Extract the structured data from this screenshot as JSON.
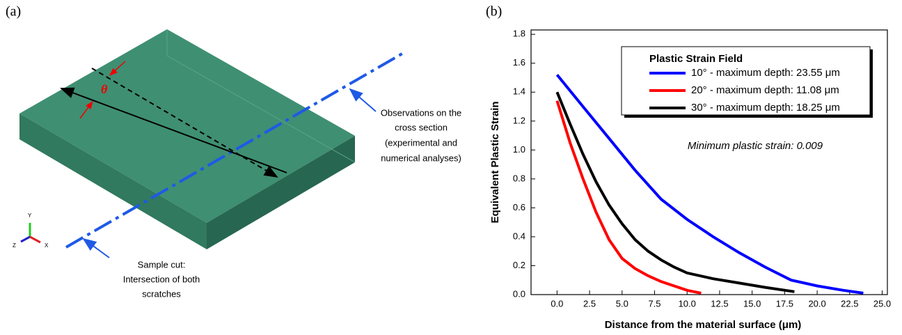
{
  "diagram": {
    "panel_label": "(a)",
    "angle_label": "θ",
    "observation_note": [
      "Observations on the",
      "cross section",
      "(experimental and",
      "numerical analyses)"
    ],
    "cut_note": [
      "Sample cut:",
      "Intersection of both",
      "scratches"
    ],
    "axes": {
      "y": "Y",
      "z": "Z",
      "x": "X"
    }
  },
  "chart_data": {
    "type": "line",
    "panel_label": "(b)",
    "xlabel": "Distance from the material surface (μm)",
    "ylabel": "Equivalent Plastic Strain",
    "annotation": "Minimum plastic strain: 0.009",
    "legend_title": "Plastic Strain Field",
    "legend": "upper right",
    "xlim": [
      -2,
      25.4
    ],
    "ylim": [
      0,
      1.83
    ],
    "xticks": [
      {
        "value": 0,
        "label": "0.0"
      },
      2.5,
      {
        "value": 5,
        "label": "5.0"
      },
      7.5,
      {
        "value": 10,
        "label": "10.0"
      },
      12.5,
      {
        "value": 15,
        "label": "15.0"
      },
      17.5,
      {
        "value": 20,
        "label": "20.0"
      },
      22.5,
      {
        "value": 25,
        "label": "25.0"
      }
    ],
    "yticks": [
      {
        "value": 0,
        "label": "0.0"
      },
      0.2,
      0.4,
      0.6,
      0.8,
      {
        "value": 1,
        "label": "1.0"
      },
      1.2,
      1.4,
      1.6,
      1.8
    ],
    "series": [
      {
        "name": "10° - maximum depth: 23.55 μm",
        "color": "#0000ff",
        "x": [
          0,
          2,
          4,
          6,
          8,
          10,
          12,
          14,
          16,
          18,
          20,
          22,
          23.55
        ],
        "values": [
          1.52,
          1.3,
          1.08,
          0.86,
          0.66,
          0.52,
          0.4,
          0.29,
          0.19,
          0.1,
          0.06,
          0.03,
          0.01
        ]
      },
      {
        "name": "20° - maximum depth: 11.08 μm",
        "color": "#ff0000",
        "x": [
          0,
          1,
          2,
          3,
          4,
          5,
          6,
          7,
          8,
          9,
          10,
          11.08
        ],
        "values": [
          1.34,
          1.05,
          0.8,
          0.57,
          0.38,
          0.25,
          0.18,
          0.13,
          0.09,
          0.06,
          0.03,
          0.01
        ]
      },
      {
        "name": "30° - maximum depth: 18.25 μm",
        "color": "#000000",
        "x": [
          0,
          1,
          2,
          3,
          4,
          5,
          6,
          7,
          8,
          9,
          10,
          12,
          14,
          16,
          18.25
        ],
        "values": [
          1.4,
          1.18,
          0.97,
          0.78,
          0.62,
          0.49,
          0.38,
          0.3,
          0.24,
          0.19,
          0.15,
          0.11,
          0.08,
          0.05,
          0.02
        ]
      }
    ]
  }
}
